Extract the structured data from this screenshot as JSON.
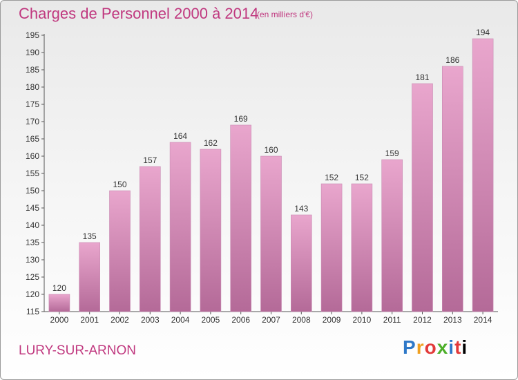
{
  "header": {
    "title": "Charges de Personnel 2000 à 2014",
    "subtitle": "(en milliers d'€)"
  },
  "footer": {
    "location": "LURY-SUR-ARNON",
    "logo": "Proxiti"
  },
  "colors": {
    "bar_top": "#e9a6cd",
    "bar_bottom": "#b46a98",
    "title": "#c0387f"
  },
  "chart_data": {
    "type": "bar",
    "title": "Charges de Personnel 2000 à 2014",
    "subtitle": "(en milliers d'€)",
    "xlabel": "",
    "ylabel": "",
    "categories": [
      "2000",
      "2001",
      "2002",
      "2003",
      "2004",
      "2005",
      "2006",
      "2007",
      "2008",
      "2009",
      "2010",
      "2011",
      "2012",
      "2013",
      "2014"
    ],
    "values": [
      120,
      135,
      150,
      157,
      164,
      162,
      169,
      160,
      143,
      152,
      152,
      159,
      181,
      186,
      194
    ],
    "ylim": [
      115,
      195
    ],
    "yticks": [
      115,
      120,
      125,
      130,
      135,
      140,
      145,
      150,
      155,
      160,
      165,
      170,
      175,
      180,
      185,
      190,
      195
    ],
    "grid": false,
    "legend": "none",
    "data_labels": true
  }
}
